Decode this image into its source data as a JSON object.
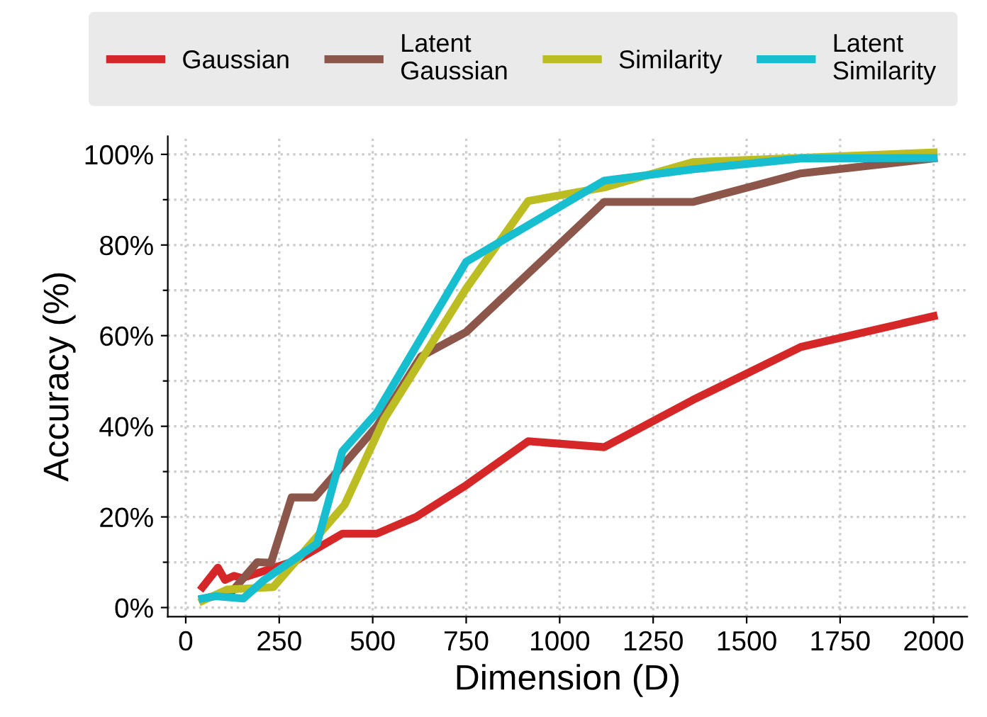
{
  "chart_data": {
    "type": "line",
    "xlabel": "Dimension (D)",
    "ylabel": "Accuracy (%)",
    "series": [
      {
        "name": "Gaussian",
        "color": "#d62728",
        "x": [
          45,
          86,
          105,
          129,
          150,
          222,
          296,
          419,
          511,
          616,
          750,
          916,
          1119,
          1356,
          1645,
          2000
        ],
        "values": [
          4.5,
          8.8,
          6.1,
          7,
          6.5,
          8.4,
          10.4,
          16.3,
          16.3,
          20,
          27,
          36.7,
          35.4,
          45.8,
          57.5,
          64.3
        ]
      },
      {
        "name": "Latent Gaussian",
        "color": "#8c564b",
        "x": [
          45,
          123,
          191,
          228,
          283,
          345,
          431,
          511,
          629,
          750,
          1119,
          1356,
          1645,
          2000
        ],
        "values": [
          1.9,
          3.5,
          10,
          9.9,
          24.3,
          24.3,
          32.4,
          40,
          55.4,
          60.8,
          89.5,
          89.5,
          95.8,
          99.1
        ]
      },
      {
        "name": "Similarity",
        "color": "#bcbd22",
        "x": [
          45,
          111,
          234,
          296,
          425,
          530,
          750,
          916,
          1119,
          1356,
          2000
        ],
        "values": [
          1.5,
          4,
          4.5,
          10.4,
          22.7,
          41.5,
          70.4,
          89.7,
          92.7,
          98.3,
          100.4
        ]
      },
      {
        "name": "Latent Similarity",
        "color": "#17becf",
        "x": [
          45,
          80,
          154,
          210,
          351,
          419,
          511,
          750,
          1119,
          1356,
          1645,
          2000
        ],
        "values": [
          2,
          2.5,
          2,
          6.1,
          14.1,
          34.5,
          43,
          76.3,
          94.2,
          96.7,
          99.1,
          99.2
        ]
      }
    ],
    "xlim": [
      -48,
      2090
    ],
    "ylim": [
      -2,
      104
    ],
    "xticks": [
      0,
      250,
      500,
      750,
      1000,
      1250,
      1500,
      1750,
      2000
    ],
    "yticks": [
      {
        "value": 0,
        "label": "0%"
      },
      {
        "value": 10,
        "label": null
      },
      {
        "value": 20,
        "label": "20%"
      },
      {
        "value": 30,
        "label": null
      },
      {
        "value": 40,
        "label": "40%"
      },
      {
        "value": 50,
        "label": null
      },
      {
        "value": 60,
        "label": "60%"
      },
      {
        "value": 70,
        "label": null
      },
      {
        "value": 80,
        "label": "80%"
      },
      {
        "value": 90,
        "label": null
      },
      {
        "value": 100,
        "label": "100%"
      }
    ],
    "grid": true,
    "legend": "top",
    "line_style": "solid",
    "marker": "none"
  }
}
